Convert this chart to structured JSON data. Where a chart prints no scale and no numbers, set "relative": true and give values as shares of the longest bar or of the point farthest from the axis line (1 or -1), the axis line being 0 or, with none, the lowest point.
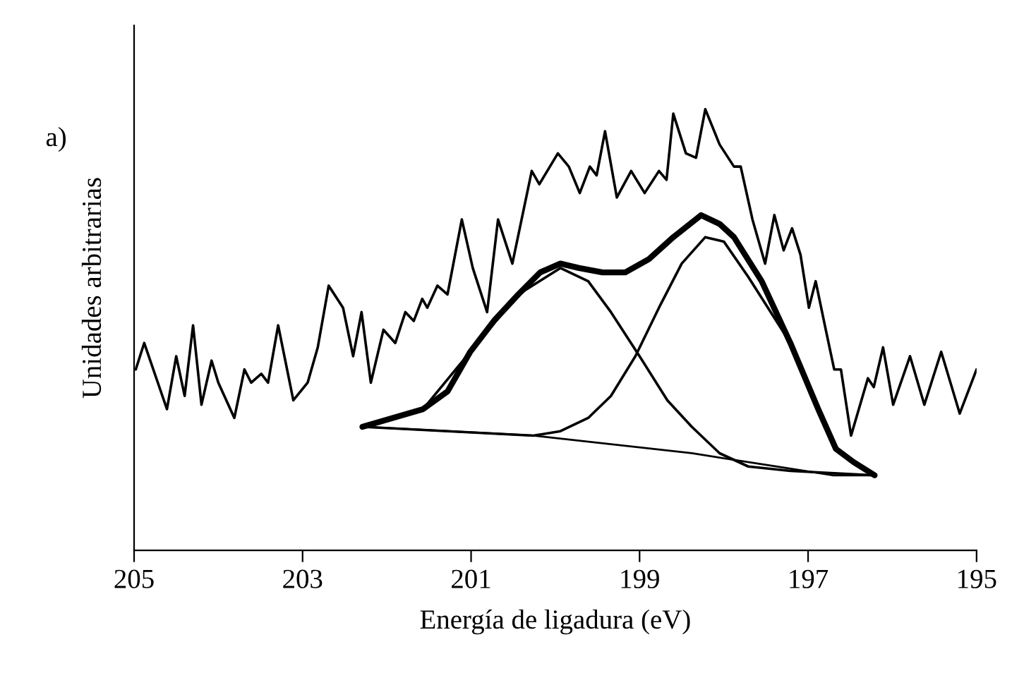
{
  "chart_data": {
    "type": "line",
    "relative": true,
    "xlabel": "Energía de ligadura (eV)",
    "ylabel": "Unidades arbitrarias",
    "annotations": [
      "a)"
    ],
    "xlim": [
      205,
      195
    ],
    "xticks": [
      205,
      203,
      201,
      199,
      197,
      195
    ],
    "grid": false,
    "tick_labels": "x",
    "line_style": "solid",
    "series": [
      {
        "color": "#000000",
        "x": [
          204.98,
          204.88,
          204.61,
          204.5,
          204.4,
          204.3,
          204.2,
          204.08,
          204.0,
          203.81,
          203.69,
          203.61,
          203.49,
          203.41,
          203.29,
          203.11,
          202.94,
          202.82,
          202.69,
          202.52,
          202.4,
          202.3,
          202.19,
          202.04,
          201.9,
          201.78,
          201.68,
          201.58,
          201.52,
          201.4,
          201.28,
          201.11,
          200.98,
          200.81,
          200.68,
          200.51,
          200.28,
          200.19,
          199.97,
          199.84,
          199.71,
          199.59,
          199.51,
          199.41,
          199.27,
          199.1,
          198.94,
          198.77,
          198.68,
          198.6,
          198.45,
          198.33,
          198.22,
          198.05,
          197.88,
          197.8,
          197.66,
          197.51,
          197.4,
          197.29,
          197.19,
          197.09,
          196.99,
          196.91,
          196.79,
          196.69,
          196.61,
          196.49,
          196.29,
          196.22,
          196.11,
          195.99,
          195.79,
          195.62,
          195.42,
          195.2,
          195.0
        ],
        "values": [
          0.41,
          0.47,
          0.32,
          0.44,
          0.35,
          0.51,
          0.33,
          0.43,
          0.38,
          0.3,
          0.41,
          0.38,
          0.4,
          0.38,
          0.51,
          0.34,
          0.38,
          0.46,
          0.6,
          0.55,
          0.44,
          0.54,
          0.38,
          0.5,
          0.47,
          0.54,
          0.52,
          0.57,
          0.55,
          0.6,
          0.58,
          0.75,
          0.64,
          0.54,
          0.75,
          0.65,
          0.86,
          0.83,
          0.9,
          0.87,
          0.81,
          0.87,
          0.85,
          0.95,
          0.8,
          0.86,
          0.81,
          0.86,
          0.84,
          0.99,
          0.9,
          0.89,
          1.0,
          0.92,
          0.87,
          0.87,
          0.75,
          0.65,
          0.76,
          0.68,
          0.73,
          0.67,
          0.55,
          0.61,
          0.5,
          0.41,
          0.41,
          0.26,
          0.39,
          0.37,
          0.46,
          0.33,
          0.44,
          0.33,
          0.45,
          0.31,
          0.41
        ]
      },
      {
        "color": "#000000",
        "x": [
          202.29,
          201.57,
          201.28,
          201.01,
          200.73,
          200.44,
          200.18,
          199.94,
          199.72,
          199.44,
          199.17,
          198.89,
          198.6,
          198.27,
          198.05,
          197.88,
          197.55,
          197.21,
          196.88,
          196.67,
          196.46,
          196.21
        ],
        "values": [
          0.28,
          0.32,
          0.36,
          0.45,
          0.52,
          0.58,
          0.63,
          0.65,
          0.64,
          0.63,
          0.63,
          0.66,
          0.71,
          0.76,
          0.74,
          0.71,
          0.61,
          0.47,
          0.32,
          0.23,
          0.2,
          0.17
        ]
      },
      {
        "color": "#000000",
        "x": [
          202.29,
          201.57,
          201.01,
          200.44,
          199.94,
          199.61,
          199.34,
          199.0,
          198.67,
          198.38,
          198.05,
          197.71,
          197.21,
          196.21
        ],
        "values": [
          0.28,
          0.32,
          0.45,
          0.58,
          0.64,
          0.61,
          0.54,
          0.44,
          0.34,
          0.28,
          0.22,
          0.19,
          0.18,
          0.17
        ]
      },
      {
        "color": "#000000",
        "x": [
          202.29,
          200.26,
          199.94,
          199.61,
          199.34,
          199.05,
          198.77,
          198.5,
          198.22,
          198.0,
          197.71,
          197.21,
          196.88,
          196.67,
          196.46,
          196.21
        ],
        "values": [
          0.28,
          0.26,
          0.27,
          0.3,
          0.35,
          0.44,
          0.55,
          0.65,
          0.71,
          0.7,
          0.62,
          0.47,
          0.32,
          0.23,
          0.2,
          0.17
        ]
      },
      {
        "color": "#000000",
        "x": [
          202.29,
          200.26,
          198.38,
          197.38,
          196.71,
          196.21
        ],
        "values": [
          0.28,
          0.26,
          0.22,
          0.19,
          0.17,
          0.17
        ]
      }
    ]
  }
}
